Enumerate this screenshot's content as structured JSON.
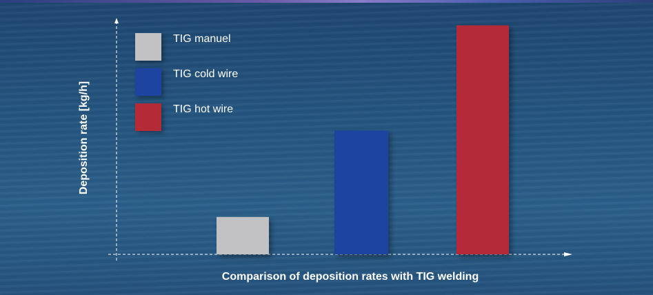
{
  "chart_data": {
    "type": "bar",
    "categories": [
      "TIG manuel",
      "TIG cold wire",
      "TIG hot wire"
    ],
    "values": [
      1.6,
      5.3,
      9.8
    ],
    "colors": [
      "#c2c2c4",
      "#1c44a0",
      "#b52a37"
    ],
    "ylabel": "Deposition rate [kg/h]",
    "xlabel": "Comparison of deposition rates with TIG welding",
    "ylim": [
      0,
      10
    ],
    "grid": false,
    "legend_position": "top-left",
    "legend": [
      {
        "label": "TIG manuel",
        "color": "#c2c2c4"
      },
      {
        "label": "TIG cold wire",
        "color": "#1c44a0"
      },
      {
        "label": "TIG hot wire",
        "color": "#b52a37"
      }
    ]
  }
}
